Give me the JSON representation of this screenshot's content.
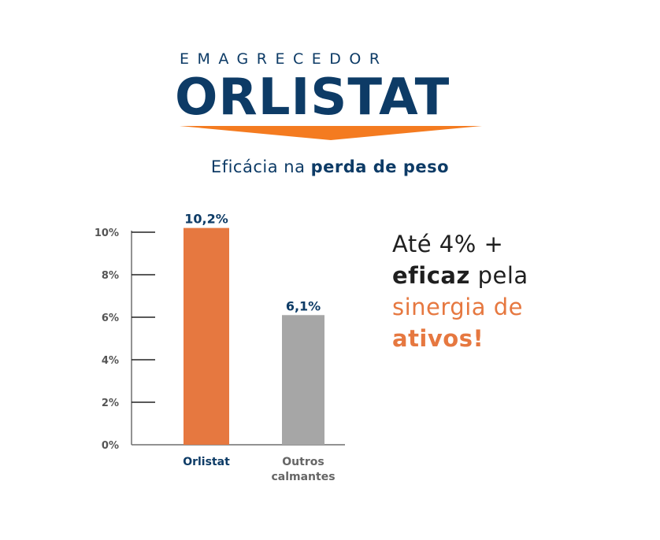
{
  "brand": {
    "subtitle": "EMAGRECEDOR",
    "name": "ORLISTAT"
  },
  "tagline": {
    "normal": "Eficácia na",
    "bold": "perda de peso"
  },
  "callout": {
    "line1": "Até 4% +",
    "line2_bold": "eficaz",
    "line2_rest": "pela",
    "line3": "sinergia de",
    "line4": "ativos!"
  },
  "colors": {
    "navy": "#0d3b66",
    "orange": "#e67840",
    "gray_bar": "#a6a6a6",
    "arrow_orange": "#f47b20"
  },
  "chart_data": {
    "type": "bar",
    "categories": [
      "Orlistat",
      "Outros calmantes"
    ],
    "category_lines": [
      [
        "Orlistat"
      ],
      [
        "Outros",
        "calmantes"
      ]
    ],
    "values": [
      10.2,
      6.1
    ],
    "value_labels": [
      "10,2%",
      "6,1%"
    ],
    "bar_colors": [
      "#e67840",
      "#a6a6a6"
    ],
    "y_ticks": [
      0,
      2,
      4,
      6,
      8,
      10
    ],
    "y_tick_labels": [
      "0%",
      "2%",
      "4%",
      "6%",
      "8%",
      "10%"
    ],
    "ylim": [
      0,
      10
    ],
    "grid": false
  }
}
